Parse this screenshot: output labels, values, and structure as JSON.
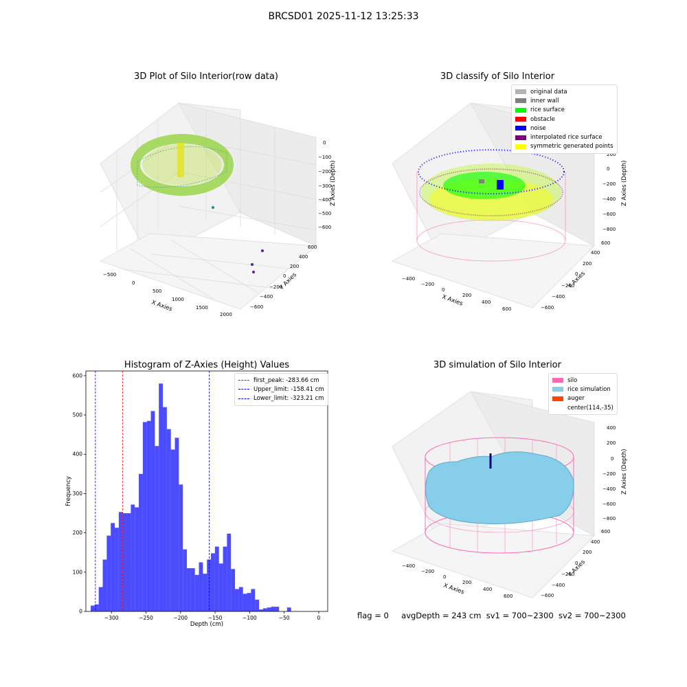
{
  "suptitle": "BRCSD01 2025-11-12 13:25:33",
  "panels": {
    "raw": {
      "title": "3D Plot of Silo Interior(row data)",
      "xlabel": "X Axies",
      "ylabel": "Y Axies",
      "zlabel": "Z Axies (Depth)",
      "xticks": [
        "−500",
        "0",
        "500",
        "1000",
        "1500",
        "2000"
      ],
      "yticks": [
        "600",
        "400",
        "200",
        "0",
        "−200",
        "−400",
        "−600"
      ],
      "zticks": [
        "0",
        "−100",
        "−200",
        "−300",
        "−400",
        "−500",
        "−600"
      ]
    },
    "classify": {
      "title": "3D classify of Silo Interior",
      "xlabel": "X Axies",
      "ylabel": "Y Axies",
      "zlabel": "Z Axies (Depth)",
      "xticks": [
        "−400",
        "−200",
        "0",
        "200",
        "400",
        "600"
      ],
      "yticks": [
        "600",
        "400",
        "200",
        "0",
        "−200",
        "−400",
        "−600"
      ],
      "zticks": [
        "200",
        "0",
        "−200",
        "−400",
        "−600",
        "−800"
      ],
      "legend": [
        {
          "label": "original data",
          "color": "#b3b3b3"
        },
        {
          "label": "inner wall",
          "color": "#808080"
        },
        {
          "label": "rice surface",
          "color": "#00ff00"
        },
        {
          "label": "obstacle",
          "color": "#ff0000"
        },
        {
          "label": "noise",
          "color": "#0000ff"
        },
        {
          "label": "interpolated rice surface",
          "color": "#800080"
        },
        {
          "label": "symmetric generated points",
          "color": "#ffff00"
        }
      ]
    },
    "simulation": {
      "title": "3D simulation of Silo Interior",
      "xlabel": "X Axies",
      "ylabel": "Y Axies",
      "zlabel": "Z Axies (Depth)",
      "xticks": [
        "−400",
        "−200",
        "0",
        "200",
        "400",
        "600"
      ],
      "yticks": [
        "600",
        "400",
        "200",
        "0",
        "−200",
        "−400",
        "−600"
      ],
      "zticks": [
        "400",
        "200",
        "0",
        "−200",
        "−400",
        "−600",
        "−800"
      ],
      "legend": [
        {
          "label": "silo",
          "color": "#ff69b4"
        },
        {
          "label": "rice simulation",
          "color": "#87ceeb"
        },
        {
          "label": "auger",
          "color": "#ff4500"
        },
        {
          "label": "center(114,-35)",
          "color": ""
        }
      ]
    }
  },
  "chart_data": {
    "type": "bar",
    "title": "Histogram of Z-Axies (Height) Values",
    "xlabel": "Depth (cm)",
    "ylabel": "Frequency",
    "xlim": [
      -337,
      13
    ],
    "ylim": [
      0,
      612
    ],
    "xticks": [
      -300,
      -250,
      -200,
      -150,
      -100,
      -50,
      0
    ],
    "yticks": [
      0,
      100,
      200,
      300,
      400,
      500,
      600
    ],
    "bin_width": 5.8,
    "bins": [
      {
        "x0": -330.0,
        "count": 15
      },
      {
        "x0": -324.2,
        "count": 18
      },
      {
        "x0": -318.4,
        "count": 62
      },
      {
        "x0": -312.6,
        "count": 132
      },
      {
        "x0": -306.8,
        "count": 193
      },
      {
        "x0": -301.0,
        "count": 225
      },
      {
        "x0": -295.2,
        "count": 213
      },
      {
        "x0": -289.4,
        "count": 253
      },
      {
        "x0": -283.6,
        "count": 250
      },
      {
        "x0": -277.8,
        "count": 250
      },
      {
        "x0": -272.0,
        "count": 272
      },
      {
        "x0": -266.2,
        "count": 265
      },
      {
        "x0": -260.4,
        "count": 350
      },
      {
        "x0": -254.6,
        "count": 482
      },
      {
        "x0": -248.8,
        "count": 485
      },
      {
        "x0": -243.0,
        "count": 510
      },
      {
        "x0": -237.2,
        "count": 421
      },
      {
        "x0": -231.4,
        "count": 580
      },
      {
        "x0": -225.6,
        "count": 520
      },
      {
        "x0": -219.8,
        "count": 464
      },
      {
        "x0": -214.0,
        "count": 412
      },
      {
        "x0": -208.2,
        "count": 442
      },
      {
        "x0": -202.4,
        "count": 323
      },
      {
        "x0": -196.6,
        "count": 158
      },
      {
        "x0": -190.8,
        "count": 110
      },
      {
        "x0": -185.0,
        "count": 110
      },
      {
        "x0": -179.2,
        "count": 93
      },
      {
        "x0": -173.4,
        "count": 125
      },
      {
        "x0": -167.6,
        "count": 96
      },
      {
        "x0": -161.8,
        "count": 132
      },
      {
        "x0": -156.0,
        "count": 148
      },
      {
        "x0": -150.2,
        "count": 165
      },
      {
        "x0": -144.4,
        "count": 122
      },
      {
        "x0": -138.6,
        "count": 165
      },
      {
        "x0": -132.8,
        "count": 198
      },
      {
        "x0": -127.0,
        "count": 108
      },
      {
        "x0": -121.2,
        "count": 57
      },
      {
        "x0": -115.4,
        "count": 62
      },
      {
        "x0": -109.6,
        "count": 45
      },
      {
        "x0": -103.8,
        "count": 47
      },
      {
        "x0": -98.0,
        "count": 57
      },
      {
        "x0": -92.2,
        "count": 30
      },
      {
        "x0": -86.4,
        "count": 5
      },
      {
        "x0": -80.6,
        "count": 8
      },
      {
        "x0": -74.8,
        "count": 10
      },
      {
        "x0": -69.0,
        "count": 12
      },
      {
        "x0": -63.2,
        "count": 12
      },
      {
        "x0": -57.4,
        "count": 0
      },
      {
        "x0": -51.6,
        "count": 0
      },
      {
        "x0": -45.8,
        "count": 10
      }
    ],
    "bar_color": "#0000ff",
    "bar_alpha": 0.7,
    "lines": [
      {
        "x": -283.66,
        "label": "first_peak: -283.66 cm",
        "color": "#ff0000"
      },
      {
        "x": -158.41,
        "label": "Upper_limit: -158.41 cm",
        "color": "#0000ff"
      },
      {
        "x": -323.21,
        "label": "Lower_limit: -323.21 cm",
        "color": "#0000ff"
      }
    ],
    "legend_position": "top-right"
  },
  "status": {
    "flag": "flag = 0",
    "avg": "avgDepth = 243 cm",
    "sv1": "sv1 = 700~2300",
    "sv2": "sv2 = 700~2300"
  }
}
